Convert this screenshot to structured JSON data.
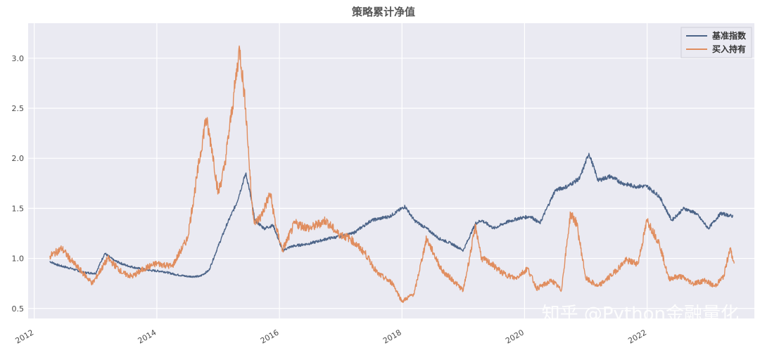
{
  "chart_data": {
    "type": "line",
    "title": "策略累计净值",
    "xlabel": "",
    "ylabel": "",
    "xlim": [
      2011.9,
      2023.75
    ],
    "ylim": [
      0.4,
      3.35
    ],
    "x_ticks": [
      "2012",
      "2014",
      "2016",
      "2018",
      "2020",
      "2022"
    ],
    "y_ticks": [
      "0.5",
      "1.0",
      "1.5",
      "2.0",
      "2.5",
      "3.0"
    ],
    "grid": true,
    "legend_position": "top-right",
    "series": [
      {
        "name": "基准指数",
        "color": "#4c6488",
        "x": [
          2012.25,
          2012.4,
          2012.6,
          2012.8,
          2013.0,
          2013.15,
          2013.3,
          2013.5,
          2013.7,
          2013.9,
          2014.1,
          2014.3,
          2014.5,
          2014.7,
          2014.85,
          2015.0,
          2015.15,
          2015.3,
          2015.45,
          2015.5,
          2015.6,
          2015.75,
          2015.9,
          2016.05,
          2016.2,
          2016.5,
          2016.8,
          2017.0,
          2017.2,
          2017.5,
          2017.8,
          2018.05,
          2018.2,
          2018.4,
          2018.6,
          2018.8,
          2019.0,
          2019.2,
          2019.3,
          2019.5,
          2019.7,
          2019.9,
          2020.1,
          2020.25,
          2020.5,
          2020.7,
          2020.9,
          2021.05,
          2021.2,
          2021.4,
          2021.6,
          2021.8,
          2022.0,
          2022.2,
          2022.4,
          2022.6,
          2022.8,
          2023.0,
          2023.2,
          2023.4
        ],
        "values": [
          0.97,
          0.93,
          0.9,
          0.86,
          0.85,
          1.05,
          0.98,
          0.93,
          0.9,
          0.88,
          0.87,
          0.84,
          0.82,
          0.82,
          0.88,
          1.12,
          1.35,
          1.55,
          1.85,
          1.72,
          1.38,
          1.3,
          1.33,
          1.08,
          1.12,
          1.15,
          1.2,
          1.22,
          1.25,
          1.38,
          1.42,
          1.52,
          1.38,
          1.3,
          1.2,
          1.15,
          1.08,
          1.35,
          1.38,
          1.3,
          1.36,
          1.4,
          1.42,
          1.35,
          1.68,
          1.72,
          1.8,
          2.05,
          1.78,
          1.82,
          1.75,
          1.72,
          1.72,
          1.62,
          1.38,
          1.5,
          1.45,
          1.3,
          1.45,
          1.42
        ]
      },
      {
        "name": "买入持有",
        "color": "#e08d5e",
        "x": [
          2012.25,
          2012.45,
          2012.6,
          2012.8,
          2012.95,
          2013.2,
          2013.45,
          2013.6,
          2013.8,
          2014.0,
          2014.25,
          2014.5,
          2014.65,
          2014.8,
          2014.9,
          2015.0,
          2015.1,
          2015.25,
          2015.35,
          2015.45,
          2015.55,
          2015.6,
          2015.7,
          2015.85,
          2015.95,
          2016.05,
          2016.25,
          2016.5,
          2016.75,
          2016.95,
          2017.15,
          2017.4,
          2017.6,
          2017.85,
          2018.0,
          2018.2,
          2018.4,
          2018.65,
          2018.8,
          2019.0,
          2019.2,
          2019.3,
          2019.45,
          2019.65,
          2019.85,
          2020.05,
          2020.2,
          2020.45,
          2020.6,
          2020.75,
          2020.85,
          2021.0,
          2021.2,
          2021.45,
          2021.65,
          2021.85,
          2022.0,
          2022.2,
          2022.35,
          2022.55,
          2022.75,
          2022.95,
          2023.1,
          2023.25,
          2023.35,
          2023.42
        ],
        "values": [
          1.02,
          1.1,
          0.98,
          0.85,
          0.75,
          1.0,
          0.85,
          0.82,
          0.9,
          0.95,
          0.92,
          1.2,
          1.8,
          2.4,
          2.1,
          1.65,
          1.9,
          2.6,
          3.1,
          2.5,
          1.55,
          1.35,
          1.42,
          1.65,
          1.3,
          1.08,
          1.35,
          1.3,
          1.38,
          1.25,
          1.2,
          1.05,
          0.85,
          0.75,
          0.57,
          0.65,
          1.2,
          0.88,
          0.8,
          0.68,
          1.32,
          1.0,
          0.95,
          0.85,
          0.8,
          0.9,
          0.7,
          0.78,
          0.68,
          1.45,
          1.35,
          0.8,
          0.72,
          0.85,
          0.98,
          0.95,
          1.38,
          1.15,
          0.8,
          0.82,
          0.75,
          0.78,
          0.72,
          0.82,
          1.1,
          0.95
        ]
      }
    ]
  },
  "watermark": "知乎 @Python金融量化"
}
